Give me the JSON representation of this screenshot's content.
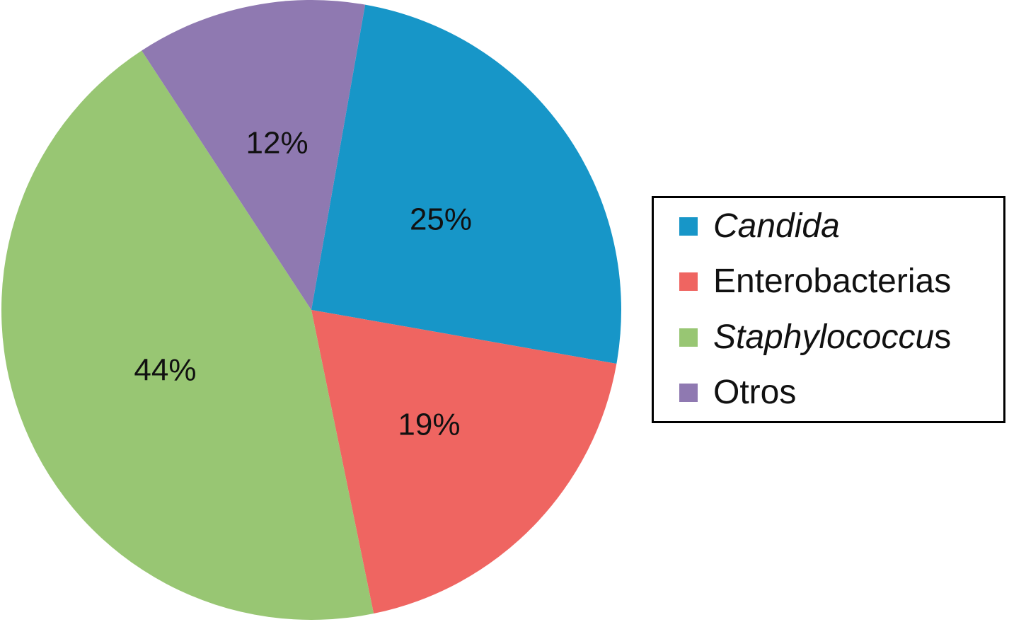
{
  "chart_data": {
    "type": "pie",
    "title": "",
    "slices": [
      {
        "label": "Candida",
        "value": 25,
        "display": "25%",
        "color": "#1796c8"
      },
      {
        "label": "Enterobacterias",
        "value": 19,
        "display": "19%",
        "color": "#ef6561"
      },
      {
        "label": "Staphylococcus",
        "value": 44,
        "display": "44%",
        "color": "#98c673"
      },
      {
        "label": "Otros",
        "value": 12,
        "display": "12%",
        "color": "#8f79b1"
      }
    ],
    "legend": {
      "placement": "right",
      "entries": [
        {
          "italic": "Candida",
          "plain": "",
          "color": "#1796c8"
        },
        {
          "italic": "",
          "plain": "Enterobacterias",
          "color": "#ef6561"
        },
        {
          "italic": "Staphylococcu",
          "plain": "s",
          "color": "#98c673"
        },
        {
          "italic": "",
          "plain": "Otros",
          "color": "#8f79b1"
        }
      ]
    }
  }
}
